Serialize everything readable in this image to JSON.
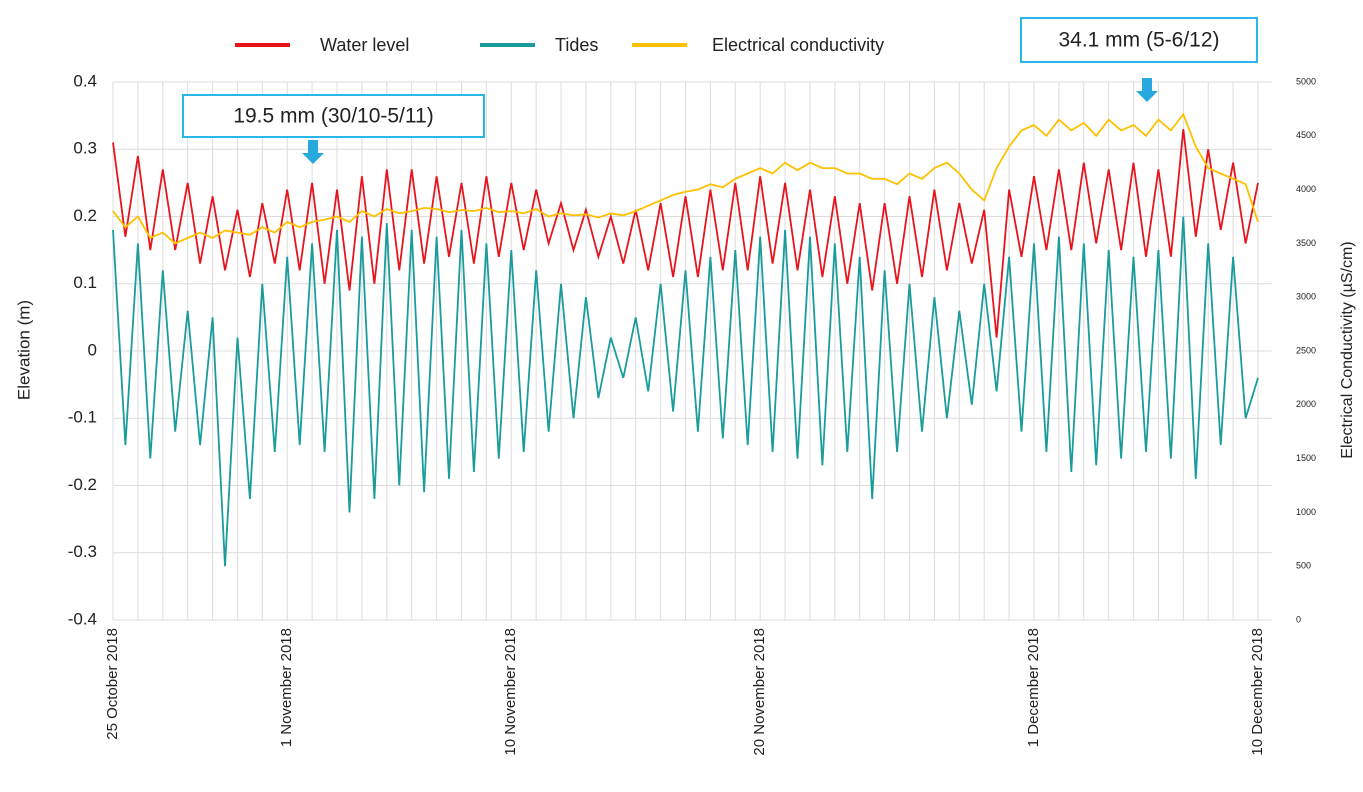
{
  "chart_data": {
    "type": "line",
    "y_label": "Elevation (m)",
    "y2_label": "Electrical Conductivity (µS/cm)",
    "annotations": [
      "19.5 mm (30/10-5/11)",
      "34.1 mm (5-6/12)"
    ],
    "categories": [
      "25 October 2018",
      null,
      null,
      null,
      null,
      null,
      null,
      null,
      null,
      null,
      null,
      null,
      null,
      null,
      "1 November 2018",
      null,
      null,
      null,
      null,
      null,
      null,
      null,
      null,
      null,
      null,
      null,
      null,
      null,
      null,
      null,
      null,
      null,
      "10 November 2018",
      null,
      null,
      null,
      null,
      null,
      null,
      null,
      null,
      null,
      null,
      null,
      null,
      null,
      null,
      null,
      null,
      null,
      null,
      null,
      "20 November 2018",
      null,
      null,
      null,
      null,
      null,
      null,
      null,
      null,
      null,
      null,
      null,
      null,
      null,
      null,
      null,
      null,
      null,
      null,
      null,
      null,
      null,
      "1 December 2018",
      null,
      null,
      null,
      null,
      null,
      null,
      null,
      null,
      null,
      null,
      null,
      null,
      null,
      null,
      null,
      null,
      null,
      "10 December 2018"
    ],
    "ylim": [
      -0.4,
      0.4
    ],
    "yticks": [
      -0.4,
      -0.3,
      -0.2,
      -0.1,
      0,
      0.1,
      0.2,
      0.3,
      0.4
    ],
    "y2lim": [
      0,
      5000
    ],
    "y2ticks": [
      0,
      500,
      1000,
      1500,
      2000,
      2500,
      3000,
      3500,
      4000,
      4500,
      5000
    ],
    "grid": true,
    "series": [
      {
        "name": "Water level",
        "color": "#e8141c",
        "values": [
          0.31,
          0.17,
          0.29,
          0.15,
          0.27,
          0.15,
          0.25,
          0.13,
          0.23,
          0.12,
          0.21,
          0.11,
          0.22,
          0.13,
          0.24,
          0.12,
          0.25,
          0.1,
          0.24,
          0.09,
          0.26,
          0.1,
          0.27,
          0.12,
          0.27,
          0.13,
          0.26,
          0.14,
          0.25,
          0.13,
          0.26,
          0.14,
          0.25,
          0.15,
          0.24,
          0.16,
          0.22,
          0.15,
          0.21,
          0.14,
          0.2,
          0.13,
          0.21,
          0.12,
          0.22,
          0.11,
          0.23,
          0.11,
          0.24,
          0.12,
          0.25,
          0.12,
          0.26,
          0.13,
          0.25,
          0.12,
          0.24,
          0.11,
          0.23,
          0.1,
          0.22,
          0.09,
          0.22,
          0.1,
          0.23,
          0.11,
          0.24,
          0.12,
          0.22,
          0.13,
          0.21,
          0.02,
          0.24,
          0.14,
          0.26,
          0.15,
          0.27,
          0.15,
          0.28,
          0.16,
          0.27,
          0.15,
          0.28,
          0.14,
          0.27,
          0.14,
          0.33,
          0.17,
          0.3,
          0.18,
          0.28,
          0.16,
          0.25
        ]
      },
      {
        "name": "Tides",
        "color": "#1a9c9c",
        "values": [
          0.18,
          -0.14,
          0.16,
          -0.16,
          0.12,
          -0.12,
          0.06,
          -0.14,
          0.05,
          -0.32,
          0.02,
          -0.22,
          0.1,
          -0.15,
          0.14,
          -0.14,
          0.16,
          -0.15,
          0.18,
          -0.24,
          0.17,
          -0.22,
          0.19,
          -0.2,
          0.18,
          -0.21,
          0.17,
          -0.19,
          0.18,
          -0.18,
          0.16,
          -0.16,
          0.15,
          -0.15,
          0.12,
          -0.12,
          0.1,
          -0.1,
          0.08,
          -0.07,
          0.02,
          -0.04,
          0.05,
          -0.06,
          0.1,
          -0.09,
          0.12,
          -0.12,
          0.14,
          -0.13,
          0.15,
          -0.14,
          0.17,
          -0.15,
          0.18,
          -0.16,
          0.17,
          -0.17,
          0.16,
          -0.15,
          0.14,
          -0.22,
          0.12,
          -0.15,
          0.1,
          -0.12,
          0.08,
          -0.1,
          0.06,
          -0.08,
          0.1,
          -0.06,
          0.14,
          -0.12,
          0.16,
          -0.15,
          0.17,
          -0.18,
          0.16,
          -0.17,
          0.15,
          -0.16,
          0.14,
          -0.15,
          0.15,
          -0.16,
          0.2,
          -0.19,
          0.16,
          -0.14,
          0.14,
          -0.1,
          -0.04
        ]
      },
      {
        "name": "Electrical conductivity",
        "color": "#ffc000",
        "axis": "y2",
        "values": [
          3800,
          3650,
          3750,
          3550,
          3600,
          3500,
          3550,
          3600,
          3550,
          3620,
          3600,
          3580,
          3650,
          3600,
          3700,
          3650,
          3700,
          3720,
          3750,
          3700,
          3800,
          3750,
          3820,
          3780,
          3800,
          3830,
          3820,
          3790,
          3810,
          3800,
          3830,
          3790,
          3800,
          3780,
          3820,
          3750,
          3780,
          3760,
          3770,
          3740,
          3780,
          3760,
          3800,
          3850,
          3900,
          3950,
          3980,
          4000,
          4050,
          4020,
          4100,
          4150,
          4200,
          4150,
          4250,
          4180,
          4250,
          4200,
          4200,
          4150,
          4150,
          4100,
          4100,
          4050,
          4150,
          4100,
          4200,
          4250,
          4150,
          4000,
          3900,
          4200,
          4400,
          4550,
          4600,
          4500,
          4650,
          4550,
          4620,
          4500,
          4650,
          4550,
          4600,
          4500,
          4650,
          4550,
          4700,
          4400,
          4200,
          4150,
          4100,
          4050,
          3700
        ]
      }
    ]
  }
}
